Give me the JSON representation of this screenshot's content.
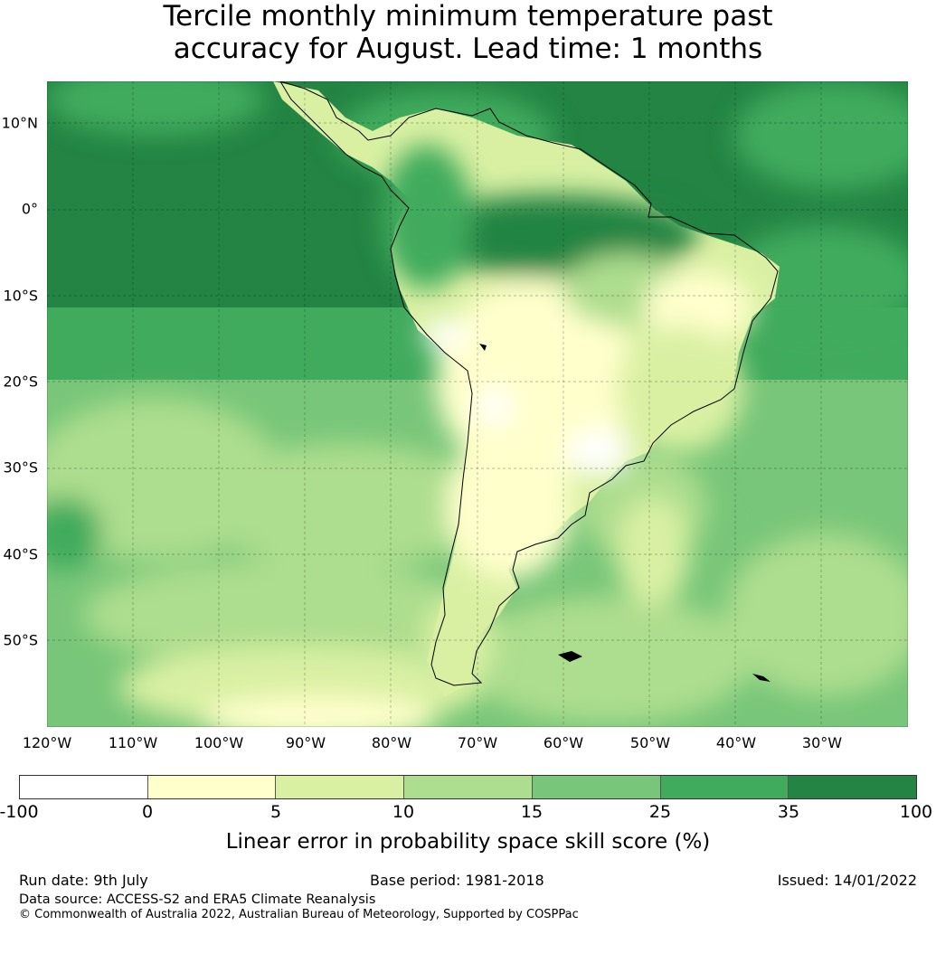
{
  "title_line1": "Tercile monthly minimum temperature past",
  "title_line2": "accuracy for August. Lead time: 1 months",
  "lat_labels": [
    "10°N",
    "0°",
    "10°S",
    "20°S",
    "30°S",
    "40°S",
    "50°S"
  ],
  "lon_labels": [
    "120°W",
    "110°W",
    "100°W",
    "90°W",
    "80°W",
    "70°W",
    "60°W",
    "50°W",
    "40°W",
    "30°W"
  ],
  "colorbar": {
    "ticks": [
      "-100",
      "0",
      "5",
      "10",
      "15",
      "25",
      "35",
      "100"
    ],
    "colors": [
      "#ffffff",
      "#ffffcc",
      "#d9f0a3",
      "#addd8e",
      "#78c679",
      "#41ab5d",
      "#238443"
    ],
    "label": "Linear error in probability space skill score (%)"
  },
  "footer": {
    "run_date": "Run date: 9th July",
    "base_period": "Base period: 1981-2018",
    "issued": "Issued: 14/01/2022",
    "data_source": "Data source: ACCESS-S2 and ERA5 Climate Reanalysis",
    "copyright": "© Commonwealth of Australia 2022, Australian Bureau of Meteorology, Supported by COSPPac"
  }
}
